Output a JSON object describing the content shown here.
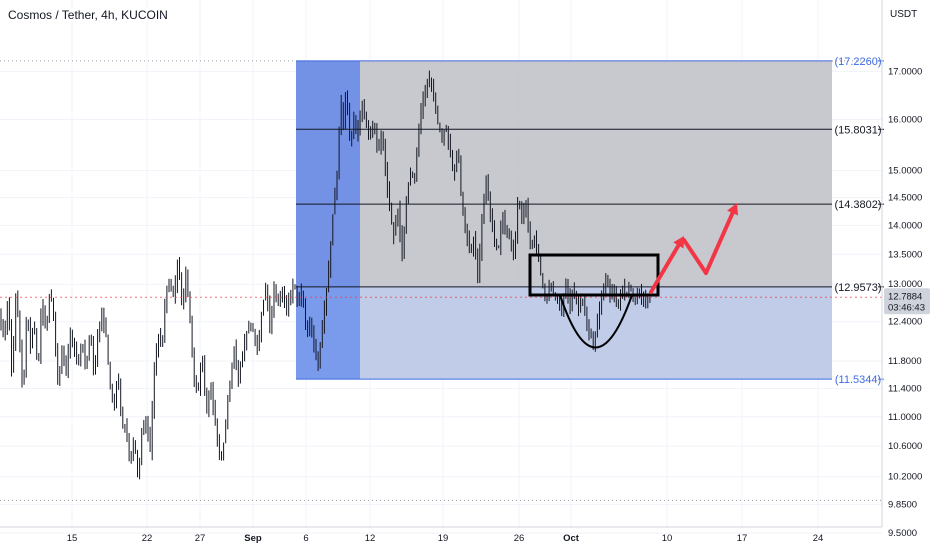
{
  "header": {
    "title": "Cosmos / Tether, 4h, KUCOIN"
  },
  "axis": {
    "currency": "USDT"
  },
  "colors": {
    "candle": "#131722",
    "blue_band": "#5b7fe0",
    "blue_band_light": "#7fa0f0",
    "range_fill": "#b9bcc2",
    "support_fill": "#b9c6e6",
    "fib_line": "#131722",
    "fib_edge": "#3d6be0",
    "arrow": "#f23645",
    "grid": "#f0f3fa",
    "dotted": "#9598a1"
  },
  "chart_data": {
    "type": "candlestick",
    "symbol": "ATOM/USDT",
    "timeframe": "4h",
    "exchange": "KUCOIN",
    "y_scale": "log",
    "ylim": [
      9.3,
      18.6
    ],
    "y_ticks": [
      "17.0000",
      "16.0000",
      "15.0000",
      "14.5000",
      "14.0000",
      "13.5000",
      "13.0000",
      "12.4000",
      "11.8000",
      "11.4000",
      "11.0000",
      "10.6000",
      "10.2000",
      "9.8500",
      "9.5000"
    ],
    "x_ticks": [
      "15",
      "22",
      "27",
      "Sep",
      "6",
      "12",
      "19",
      "26",
      "Oct",
      "10",
      "17",
      "24"
    ],
    "fib_levels": [
      {
        "label": "(17.2260)",
        "value": 17.226,
        "edge": true
      },
      {
        "label": "(15.8031)",
        "value": 15.8031,
        "edge": false
      },
      {
        "label": "(14.3802)",
        "value": 14.3802,
        "edge": false
      },
      {
        "label": "(12.9573)",
        "value": 12.9573,
        "edge": false
      },
      {
        "label": "(11.5344)",
        "value": 11.5344,
        "edge": true
      }
    ],
    "current_price": {
      "value": "12.7884",
      "countdown": "03:46:43"
    },
    "price_path": [
      [
        0,
        12.5
      ],
      [
        4,
        12.1
      ],
      [
        8,
        12.8
      ],
      [
        12,
        11.5
      ],
      [
        16,
        12.9
      ],
      [
        19,
        12.2
      ],
      [
        23,
        11.3
      ],
      [
        27,
        12.6
      ],
      [
        30,
        12.0
      ],
      [
        34,
        12.4
      ],
      [
        38,
        11.6
      ],
      [
        42,
        12.8
      ],
      [
        46,
        12.2
      ],
      [
        50,
        12.9
      ],
      [
        54,
        12.4
      ],
      [
        58,
        11.4
      ],
      [
        62,
        12.0
      ],
      [
        66,
        11.6
      ],
      [
        70,
        12.2
      ],
      [
        74,
        12.0
      ],
      [
        78,
        11.7
      ],
      [
        82,
        12.1
      ],
      [
        86,
        11.7
      ],
      [
        90,
        12.3
      ],
      [
        94,
        11.5
      ],
      [
        98,
        12.3
      ],
      [
        102,
        12.5
      ],
      [
        106,
        12.2
      ],
      [
        110,
        11.4
      ],
      [
        114,
        11.1
      ],
      [
        118,
        11.6
      ],
      [
        122,
        10.9
      ],
      [
        126,
        10.9
      ],
      [
        130,
        10.4
      ],
      [
        134,
        10.7
      ],
      [
        138,
        10.2
      ],
      [
        142,
        10.8
      ],
      [
        146,
        11.0
      ],
      [
        150,
        10.5
      ],
      [
        154,
        11.6
      ],
      [
        158,
        12.2
      ],
      [
        162,
        12.0
      ],
      [
        166,
        12.9
      ],
      [
        170,
        13.0
      ],
      [
        174,
        12.8
      ],
      [
        178,
        13.4
      ],
      [
        182,
        12.6
      ],
      [
        186,
        13.2
      ],
      [
        190,
        12.4
      ],
      [
        194,
        11.5
      ],
      [
        198,
        11.3
      ],
      [
        202,
        12.0
      ],
      [
        206,
        11.0
      ],
      [
        210,
        11.5
      ],
      [
        214,
        11.0
      ],
      [
        218,
        10.6
      ],
      [
        222,
        10.4
      ],
      [
        226,
        11.0
      ],
      [
        230,
        11.5
      ],
      [
        234,
        12.0
      ],
      [
        238,
        11.5
      ],
      [
        242,
        11.9
      ],
      [
        246,
        12.2
      ],
      [
        250,
        12.4
      ],
      [
        254,
        12.2
      ],
      [
        258,
        11.9
      ],
      [
        262,
        12.6
      ],
      [
        266,
        13.0
      ],
      [
        270,
        12.3
      ],
      [
        274,
        12.9
      ],
      [
        278,
        12.7
      ],
      [
        282,
        12.9
      ],
      [
        286,
        12.6
      ],
      [
        290,
        12.8
      ],
      [
        294,
        13.0
      ],
      [
        298,
        12.7
      ],
      [
        302,
        12.9
      ],
      [
        306,
        12.2
      ],
      [
        310,
        12.4
      ],
      [
        314,
        12.0
      ],
      [
        318,
        11.7
      ],
      [
        322,
        12.3
      ],
      [
        326,
        12.8
      ],
      [
        330,
        13.5
      ],
      [
        334,
        14.5
      ],
      [
        338,
        15.0
      ],
      [
        340,
        16.5
      ],
      [
        342,
        16.2
      ],
      [
        344,
        15.6
      ],
      [
        346,
        16.8
      ],
      [
        348,
        16.0
      ],
      [
        350,
        15.5
      ],
      [
        354,
        16.0
      ],
      [
        358,
        15.7
      ],
      [
        362,
        16.4
      ],
      [
        366,
        15.9
      ],
      [
        370,
        15.6
      ],
      [
        374,
        15.9
      ],
      [
        378,
        15.3
      ],
      [
        382,
        15.7
      ],
      [
        386,
        14.9
      ],
      [
        390,
        14.2
      ],
      [
        394,
        13.8
      ],
      [
        398,
        14.3
      ],
      [
        402,
        13.4
      ],
      [
        406,
        14.4
      ],
      [
        410,
        15.0
      ],
      [
        414,
        14.8
      ],
      [
        418,
        15.6
      ],
      [
        422,
        16.4
      ],
      [
        426,
        16.6
      ],
      [
        430,
        16.9
      ],
      [
        434,
        16.4
      ],
      [
        438,
        15.9
      ],
      [
        442,
        15.6
      ],
      [
        446,
        15.9
      ],
      [
        450,
        15.3
      ],
      [
        454,
        14.9
      ],
      [
        458,
        15.4
      ],
      [
        462,
        14.3
      ],
      [
        466,
        13.9
      ],
      [
        470,
        13.5
      ],
      [
        474,
        13.8
      ],
      [
        478,
        13.1
      ],
      [
        482,
        14.1
      ],
      [
        486,
        14.8
      ],
      [
        490,
        14.2
      ],
      [
        494,
        13.8
      ],
      [
        498,
        13.5
      ],
      [
        502,
        14.2
      ],
      [
        506,
        13.9
      ],
      [
        510,
        13.8
      ],
      [
        514,
        13.4
      ],
      [
        518,
        14.5
      ],
      [
        522,
        14.1
      ],
      [
        526,
        14.4
      ],
      [
        530,
        13.6
      ],
      [
        534,
        13.8
      ],
      [
        538,
        13.5
      ],
      [
        542,
        13.0
      ],
      [
        546,
        12.7
      ],
      [
        550,
        13.1
      ],
      [
        554,
        12.8
      ],
      [
        558,
        12.7
      ],
      [
        562,
        12.6
      ],
      [
        566,
        13.0
      ],
      [
        570,
        12.6
      ],
      [
        574,
        12.9
      ],
      [
        578,
        12.6
      ],
      [
        582,
        12.8
      ],
      [
        586,
        12.4
      ],
      [
        590,
        12.2
      ],
      [
        594,
        12.0
      ],
      [
        598,
        12.5
      ],
      [
        602,
        12.8
      ],
      [
        606,
        13.1
      ],
      [
        610,
        12.8
      ],
      [
        614,
        12.9
      ],
      [
        618,
        12.6
      ],
      [
        622,
        13.0
      ],
      [
        626,
        12.8
      ],
      [
        630,
        13.0
      ],
      [
        634,
        12.7
      ],
      [
        638,
        12.9
      ],
      [
        642,
        12.8
      ],
      [
        646,
        12.7
      ],
      [
        650,
        12.79
      ]
    ]
  }
}
